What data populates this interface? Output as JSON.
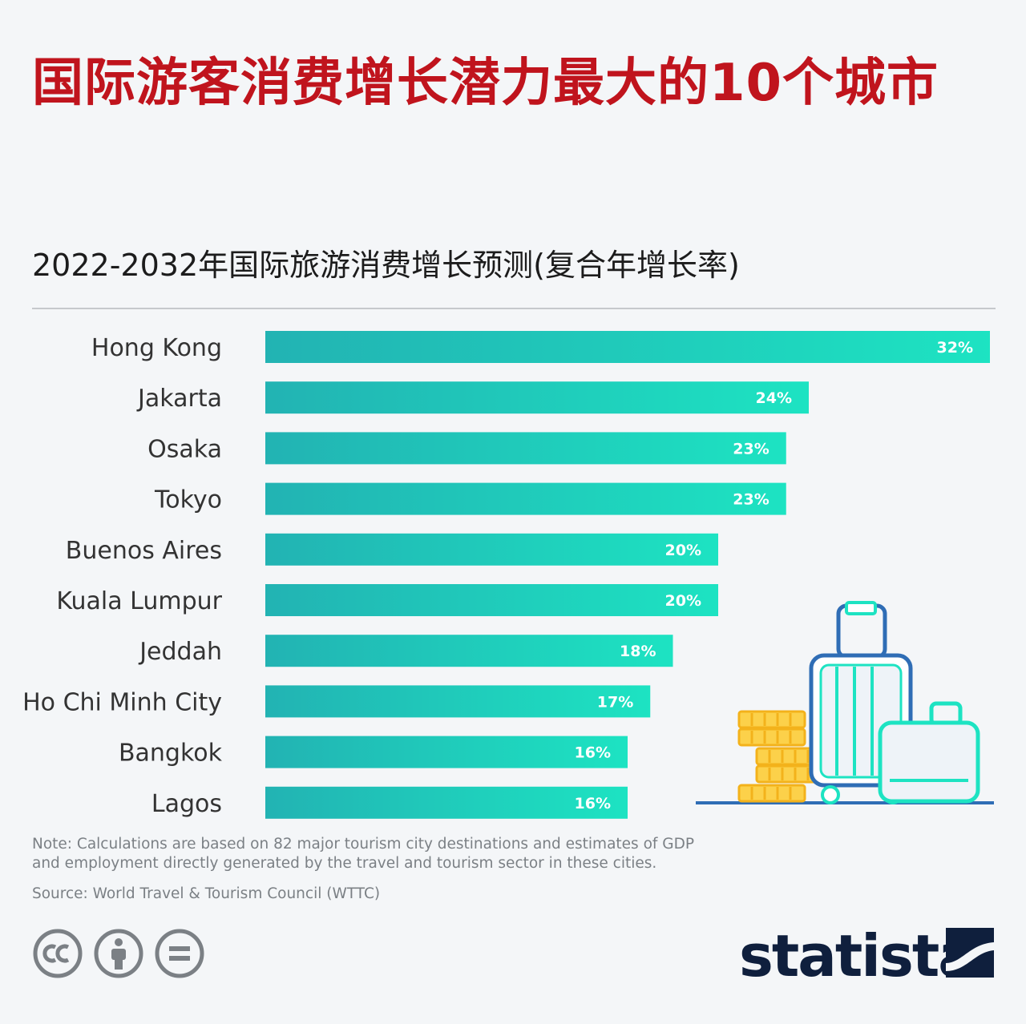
{
  "title": "国际游客消费增长潜力最大的10个城市",
  "subtitle": "2022-2032年国际旅游消费增长预测(复合年增长率)",
  "note": "Note: Calculations are based on 82 major tourism city destinations and estimates of GDP and employment directly generated by the travel and tourism sector in these cities.",
  "source": "Source: World Travel & Tourism Council (WTTC)",
  "brand": {
    "name": "statista",
    "color": "#0f1f3d"
  },
  "license_icons": [
    "cc-icon",
    "attribution-icon",
    "no-derivatives-icon"
  ],
  "colors": {
    "title": "#c0141d",
    "bar_start": "#22b3b3",
    "bar_end": "#1de3c2"
  },
  "chart_data": {
    "type": "bar",
    "orientation": "horizontal",
    "title": "2022-2032年国际旅游消费增长预测(复合年增长率)",
    "xlabel": "",
    "ylabel": "",
    "xlim": [
      0,
      32
    ],
    "grid": false,
    "legend": "none",
    "unit": "%",
    "categories": [
      "Hong Kong",
      "Jakarta",
      "Osaka",
      "Tokyo",
      "Buenos Aires",
      "Kuala Lumpur",
      "Jeddah",
      "Ho Chi Minh City",
      "Bangkok",
      "Lagos"
    ],
    "values": [
      32,
      24,
      23,
      23,
      20,
      20,
      18,
      17,
      16,
      16
    ],
    "value_labels": [
      "32%",
      "24%",
      "23%",
      "23%",
      "20%",
      "20%",
      "18%",
      "17%",
      "16%",
      "16%"
    ]
  }
}
